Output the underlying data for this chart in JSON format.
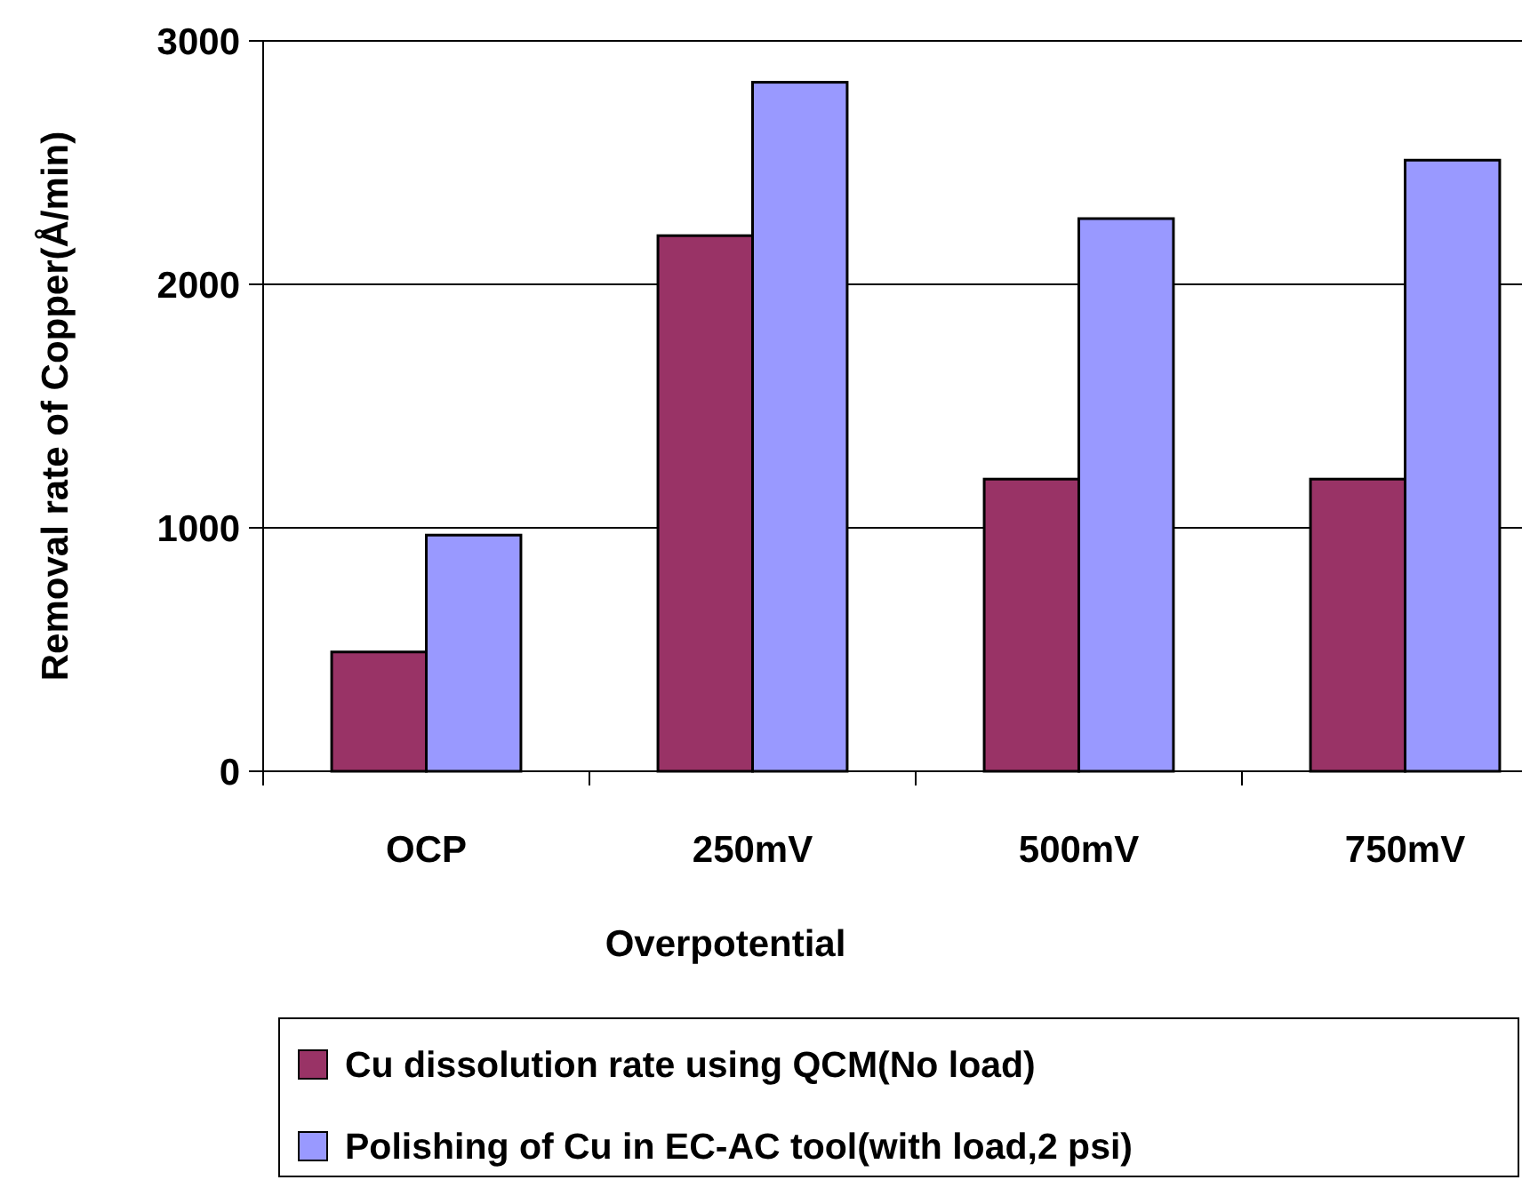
{
  "chart_data": {
    "type": "bar",
    "xlabel": "Overpotential",
    "ylabel": "Removal rate of Copper(Å/min)",
    "categories": [
      "OCP",
      "250mV",
      "500mV",
      "750mV"
    ],
    "series": [
      {
        "name": "Cu dissolution rate using QCM(No load)",
        "color": "#993366",
        "values": [
          490,
          2200,
          1200,
          1200
        ]
      },
      {
        "name": "Polishing of Cu in EC-AC tool(with load,2 psi)",
        "color": "#9999ff",
        "values": [
          970,
          2830,
          2270,
          2510
        ]
      }
    ],
    "ylim": [
      0,
      3000
    ],
    "yticks": [
      0,
      1000,
      2000,
      3000
    ],
    "grid": "y",
    "legend": "bottom"
  }
}
